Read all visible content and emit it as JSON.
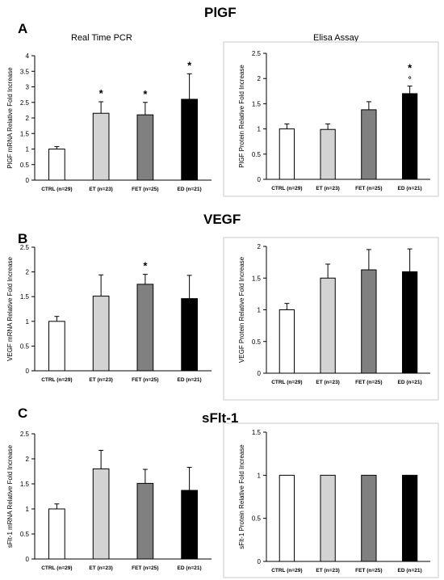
{
  "sections": [
    {
      "letter": "A",
      "title": "PlGF"
    },
    {
      "letter": "B",
      "title": "VEGF"
    },
    {
      "letter": "C",
      "title": "sFlt-1"
    }
  ],
  "subtitles": {
    "pcr": "Real Time PCR",
    "elisa": "Elisa Assay"
  },
  "colors": {
    "CTRL": "#ffffff",
    "ET": "#d3d3d3",
    "FET": "#808080",
    "ED": "#000000",
    "axis": "#000000",
    "grid_frame": "#c8c8c8"
  },
  "chart_data": [
    {
      "id": "plgf-pcr",
      "type": "bar",
      "title": "Real Time PCR",
      "ylabel": "PlGF mRNA Relative Fold Increase",
      "categories": [
        "CTRL (n=29)",
        "ET (n=23)",
        "FET (n=25)",
        "ED (n=21)"
      ],
      "values": [
        1.0,
        2.15,
        2.1,
        2.6
      ],
      "errors": [
        0.08,
        0.37,
        0.4,
        0.82
      ],
      "annotations": [
        "",
        "*",
        "*",
        "*"
      ],
      "ylim": [
        0,
        4
      ],
      "yticks": [
        "0",
        "0.5",
        "1",
        "1.5",
        "2",
        "2.5",
        "3",
        "3.5",
        "4"
      ],
      "frame": false
    },
    {
      "id": "plgf-elisa",
      "type": "bar",
      "title": "Elisa Assay",
      "ylabel": "PlGF Protein Relative Fold Increase",
      "categories": [
        "CTRL (n=29)",
        "ET (n=23)",
        "FET (n=25)",
        "ED (n=21)"
      ],
      "values": [
        1.0,
        0.99,
        1.38,
        1.7
      ],
      "errors": [
        0.1,
        0.11,
        0.16,
        0.15
      ],
      "annotations": [
        "",
        "",
        "",
        "*\n°"
      ],
      "ylim": [
        0,
        2.5
      ],
      "yticks": [
        "0",
        "0.5",
        "1",
        "1.5",
        "2",
        "2.5"
      ],
      "frame": true
    },
    {
      "id": "vegf-pcr",
      "type": "bar",
      "ylabel": "VEGF mRNA Relative Fold Increase",
      "categories": [
        "CTRL (n=29)",
        "ET (n=23)",
        "FET (n=25)",
        "ED (n=21)"
      ],
      "values": [
        1.0,
        1.51,
        1.75,
        1.46
      ],
      "errors": [
        0.1,
        0.43,
        0.2,
        0.47
      ],
      "annotations": [
        "",
        "",
        "*",
        ""
      ],
      "ylim": [
        0,
        2.5
      ],
      "yticks": [
        "0",
        "0.5",
        "1",
        "1.5",
        "2",
        "2.5"
      ],
      "frame": false
    },
    {
      "id": "vegf-elisa",
      "type": "bar",
      "ylabel": "VEGF Protein Relative Fold Increase",
      "categories": [
        "CTRL (n=29)",
        "ET (n=23)",
        "FET (n=25)",
        "ED (n=21)"
      ],
      "values": [
        1.0,
        1.5,
        1.63,
        1.6
      ],
      "errors": [
        0.1,
        0.22,
        0.32,
        0.36
      ],
      "annotations": [
        "",
        "",
        "",
        ""
      ],
      "ylim": [
        0,
        2
      ],
      "yticks": [
        "0",
        "0.5",
        "1",
        "1.5",
        "2"
      ],
      "frame": true
    },
    {
      "id": "sflt-pcr",
      "type": "bar",
      "ylabel": "sFlt-1 mRNA Relative Fold Increase",
      "categories": [
        "CTRL (n=29)",
        "ET (n=23)",
        "FET (n=25)",
        "ED (n=21)"
      ],
      "values": [
        1.0,
        1.8,
        1.51,
        1.37
      ],
      "errors": [
        0.1,
        0.37,
        0.28,
        0.46
      ],
      "annotations": [
        "",
        "",
        "",
        ""
      ],
      "ylim": [
        0,
        2.5
      ],
      "yticks": [
        "0",
        "0.5",
        "1",
        "1.5",
        "2",
        "2.5"
      ],
      "frame": false
    },
    {
      "id": "sflt-elisa",
      "type": "bar",
      "ylabel": "sFlt-1 Protein Relative Fold Increase",
      "categories": [
        "CTRL (n=29)",
        "ET (n=23)",
        "FET (n=25)",
        "ED (n=21)"
      ],
      "values": [
        1.0,
        1.0,
        1.0,
        1.0
      ],
      "errors": [
        0,
        0,
        0,
        0
      ],
      "annotations": [
        "",
        "",
        "",
        ""
      ],
      "ylim": [
        0,
        1.5
      ],
      "yticks": [
        "0",
        "0.5",
        "1",
        "1.5"
      ],
      "frame": true
    }
  ]
}
